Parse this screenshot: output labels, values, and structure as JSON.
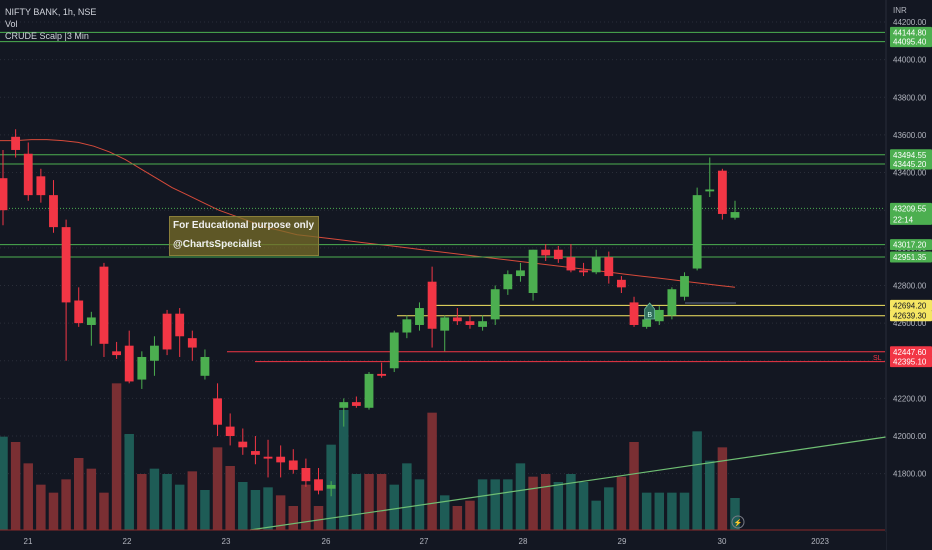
{
  "header": {
    "symbol_line": "NIFTY BANK, 1h, NSE",
    "vol_label": "Vol",
    "indicator_label": "CRUDE Scalp |3 Min"
  },
  "currency": "INR",
  "annotation": {
    "line1": "For Educational purpose only",
    "line2": "@ChartsSpecialist"
  },
  "countdown": "22:14",
  "sl_label": "SL",
  "buy_marker": "B",
  "colors": {
    "background": "#131722",
    "up": "#4caf50",
    "down": "#f23645",
    "vol_up": "#1e5c56",
    "vol_down": "#7a2f33",
    "green_level": "#4caf50",
    "yellow_level": "#f5e663",
    "red_level": "#f23645",
    "ma_line": "#d64a3a",
    "trend_line": "#6fbf73"
  },
  "chart_data": {
    "type": "candlestick",
    "y_ticks": [
      "44200.00",
      "44000.00",
      "43800.00",
      "43600.00",
      "43400.00",
      "43200.00",
      "43000.00",
      "42800.00",
      "42600.00",
      "42400.00",
      "42200.00",
      "42000.00",
      "41800.00"
    ],
    "x_ticks": [
      "21",
      "22",
      "23",
      "26",
      "27",
      "28",
      "29",
      "30",
      "2023"
    ],
    "ylim": [
      41660,
      44200
    ],
    "price_tags": [
      {
        "label": "44144.80",
        "value": 44144.8,
        "kind": "green"
      },
      {
        "label": "44095.40",
        "value": 44095.4,
        "kind": "green"
      },
      {
        "label": "43494.55",
        "value": 43494.55,
        "kind": "green"
      },
      {
        "label": "43445.20",
        "value": 43445.2,
        "kind": "green"
      },
      {
        "label": "43209.55",
        "value": 43209.55,
        "kind": "green"
      },
      {
        "label": "43017.20",
        "value": 43017.2,
        "kind": "green"
      },
      {
        "label": "42951.35",
        "value": 42951.35,
        "kind": "green"
      },
      {
        "label": "42694.20",
        "value": 42694.2,
        "kind": "yellow"
      },
      {
        "label": "42639.30",
        "value": 42639.3,
        "kind": "yellow"
      },
      {
        "label": "42447.60",
        "value": 42447.6,
        "kind": "red"
      },
      {
        "label": "42395.10",
        "value": 42395.1,
        "kind": "red"
      }
    ],
    "candles": [
      [
        43370,
        43520,
        43120,
        43200
      ],
      [
        43590,
        43630,
        43480,
        43520
      ],
      [
        43500,
        43560,
        43250,
        43280
      ],
      [
        43380,
        43420,
        43240,
        43280
      ],
      [
        43280,
        43360,
        43080,
        43110
      ],
      [
        43110,
        43150,
        42400,
        42710
      ],
      [
        42720,
        42790,
        42580,
        42600
      ],
      [
        42590,
        42660,
        42480,
        42630
      ],
      [
        42900,
        42920,
        42420,
        42490
      ],
      [
        42450,
        42500,
        42410,
        42430
      ],
      [
        42480,
        42560,
        42280,
        42290
      ],
      [
        42300,
        42450,
        42250,
        42420
      ],
      [
        42400,
        42530,
        42320,
        42480
      ],
      [
        42650,
        42670,
        42430,
        42460
      ],
      [
        42650,
        42680,
        42420,
        42530
      ],
      [
        42520,
        42560,
        42400,
        42470
      ],
      [
        42320,
        42460,
        42300,
        42420
      ],
      [
        42200,
        42280,
        42000,
        42060
      ],
      [
        42050,
        42120,
        41950,
        42000
      ],
      [
        41970,
        42040,
        41900,
        41940
      ],
      [
        41920,
        42000,
        41850,
        41900
      ],
      [
        41890,
        41980,
        41780,
        41880
      ],
      [
        41890,
        41950,
        41780,
        41860
      ],
      [
        41870,
        41930,
        41800,
        41820
      ],
      [
        41830,
        41880,
        41730,
        41760
      ],
      [
        41770,
        41830,
        41690,
        41710
      ],
      [
        41720,
        41760,
        41680,
        41740
      ],
      [
        42150,
        42200,
        42050,
        42180
      ],
      [
        42180,
        42210,
        42150,
        42160
      ],
      [
        42150,
        42340,
        42140,
        42330
      ],
      [
        42330,
        42390,
        42310,
        42320
      ],
      [
        42360,
        42560,
        42340,
        42550
      ],
      [
        42550,
        42640,
        42520,
        42620
      ],
      [
        42590,
        42710,
        42560,
        42680
      ],
      [
        42820,
        42900,
        42470,
        42570
      ],
      [
        42560,
        42640,
        42450,
        42630
      ],
      [
        42630,
        42680,
        42590,
        42610
      ],
      [
        42610,
        42640,
        42570,
        42590
      ],
      [
        42580,
        42640,
        42560,
        42610
      ],
      [
        42620,
        42800,
        42590,
        42780
      ],
      [
        42780,
        42880,
        42750,
        42860
      ],
      [
        42850,
        42920,
        42820,
        42880
      ],
      [
        42760,
        42990,
        42720,
        42990
      ],
      [
        42990,
        43020,
        42930,
        42960
      ],
      [
        42990,
        43010,
        42920,
        42940
      ],
      [
        42950,
        43020,
        42870,
        42880
      ],
      [
        42880,
        42920,
        42850,
        42870
      ],
      [
        42870,
        42990,
        42860,
        42950
      ],
      [
        42950,
        42980,
        42810,
        42850
      ],
      [
        42830,
        42850,
        42760,
        42790
      ],
      [
        42710,
        42740,
        42580,
        42590
      ],
      [
        42580,
        42640,
        42570,
        42620
      ],
      [
        42610,
        42690,
        42590,
        42670
      ],
      [
        42640,
        42790,
        42620,
        42780
      ],
      [
        42740,
        42870,
        42720,
        42850
      ],
      [
        42890,
        43320,
        42880,
        43280
      ],
      [
        43300,
        43480,
        43270,
        43310
      ],
      [
        43410,
        43420,
        43150,
        43180
      ],
      [
        43160,
        43250,
        43150,
        43190
      ]
    ],
    "volumes": [
      [
        35,
        1
      ],
      [
        33,
        0
      ],
      [
        25,
        0
      ],
      [
        17,
        0
      ],
      [
        14,
        0
      ],
      [
        19,
        0
      ],
      [
        27,
        0
      ],
      [
        23,
        0
      ],
      [
        14,
        0
      ],
      [
        55,
        0
      ],
      [
        36,
        1
      ],
      [
        21,
        0
      ],
      [
        23,
        1
      ],
      [
        21,
        1
      ],
      [
        17,
        1
      ],
      [
        22,
        0
      ],
      [
        15,
        1
      ],
      [
        31,
        0
      ],
      [
        24,
        0
      ],
      [
        18,
        1
      ],
      [
        15,
        1
      ],
      [
        16,
        1
      ],
      [
        13,
        0
      ],
      [
        9,
        0
      ],
      [
        17,
        0
      ],
      [
        9,
        0
      ],
      [
        32,
        1
      ],
      [
        45,
        1
      ],
      [
        21,
        1
      ],
      [
        21,
        0
      ],
      [
        21,
        0
      ],
      [
        17,
        1
      ],
      [
        25,
        1
      ],
      [
        19,
        1
      ],
      [
        44,
        0
      ],
      [
        13,
        1
      ],
      [
        9,
        0
      ],
      [
        11,
        0
      ],
      [
        19,
        1
      ],
      [
        19,
        1
      ],
      [
        19,
        1
      ],
      [
        25,
        1
      ],
      [
        20,
        0
      ],
      [
        21,
        0
      ],
      [
        18,
        1
      ],
      [
        21,
        1
      ],
      [
        18,
        1
      ],
      [
        11,
        1
      ],
      [
        16,
        1
      ],
      [
        20,
        0
      ],
      [
        33,
        0
      ],
      [
        14,
        1
      ],
      [
        14,
        1
      ],
      [
        14,
        1
      ],
      [
        14,
        1
      ],
      [
        37,
        1
      ],
      [
        26,
        1
      ],
      [
        31,
        0
      ],
      [
        12,
        1
      ]
    ]
  }
}
